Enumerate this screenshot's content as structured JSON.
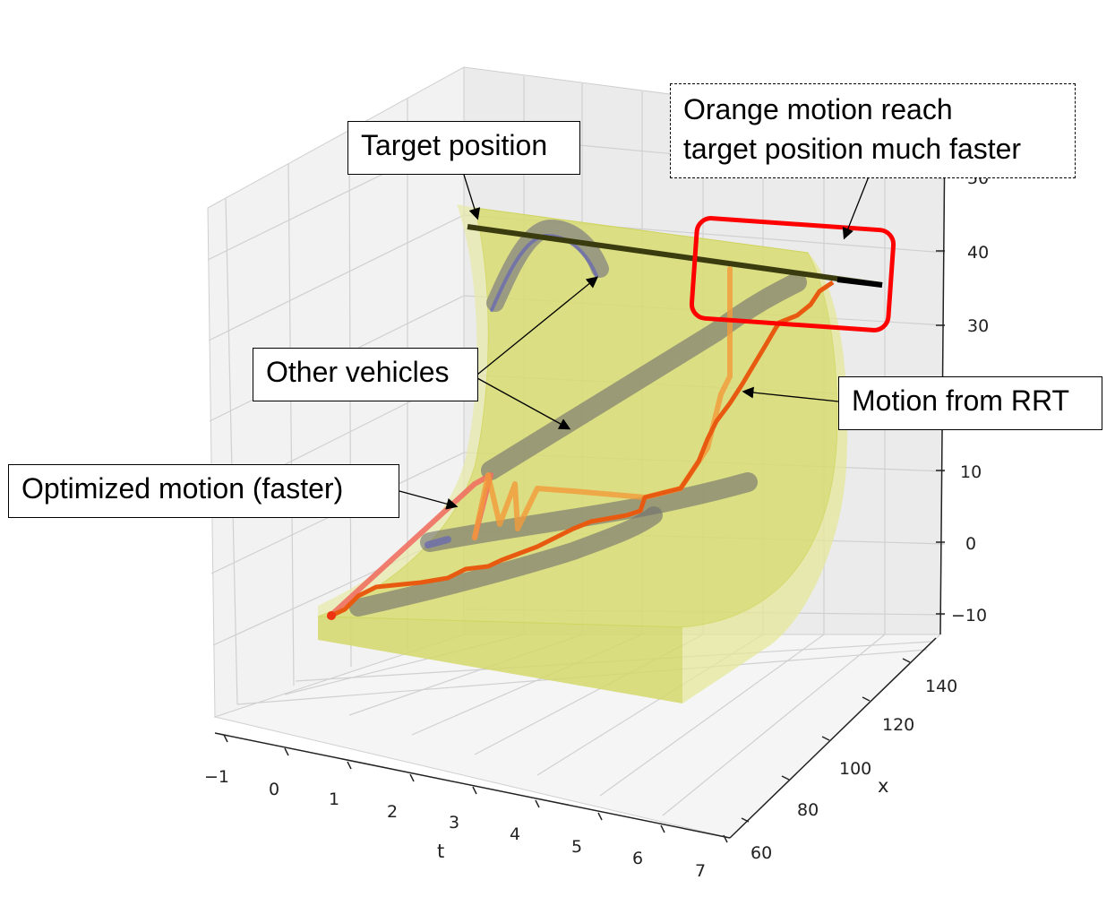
{
  "chart_data": {
    "type": "line",
    "projection": "3d",
    "title": "",
    "axes": {
      "t": {
        "label": "t",
        "ticks": [
          "−1",
          "0",
          "1",
          "2",
          "3",
          "4",
          "5",
          "6",
          "7"
        ],
        "range": [
          -1,
          7
        ]
      },
      "x": {
        "label": "x",
        "ticks": [
          "60",
          "80",
          "100",
          "120",
          "140"
        ],
        "range": [
          55,
          145
        ]
      },
      "y": {
        "label": "",
        "ticks": [
          "−10",
          "0",
          "10",
          "30",
          "40",
          "50"
        ],
        "range": [
          -15,
          50
        ]
      }
    },
    "grid": true,
    "series": [
      {
        "role": "target",
        "color": "#3b3b10",
        "t": [
          -1,
          7
        ],
        "x": [
          140,
          140
        ],
        "y": [
          36,
          36
        ]
      },
      {
        "role": "rrt",
        "color": "#e85a10",
        "t": [
          -1,
          -0.6,
          -0.2,
          0.3,
          0.8,
          1.3,
          1.8,
          2.3,
          2.8,
          3.3,
          3.8,
          4.3,
          4.8,
          5.2,
          5.6,
          5.9,
          6.2,
          6.5,
          6.8,
          7
        ],
        "x": [
          60,
          62,
          64,
          66,
          70,
          74,
          78,
          84,
          90,
          96,
          100,
          104,
          108,
          112,
          116,
          120,
          124,
          128,
          134,
          140
        ],
        "y": [
          -10,
          -8,
          -6,
          -5,
          -4,
          -2,
          0,
          2,
          4,
          6,
          8,
          10,
          12,
          16,
          20,
          24,
          28,
          32,
          34,
          36
        ]
      },
      {
        "role": "optimized",
        "color": "#f07060",
        "t": [
          -1,
          0,
          1,
          2,
          3,
          4,
          5,
          6,
          7
        ],
        "x": [
          60,
          70,
          80,
          90,
          100,
          110,
          120,
          130,
          140
        ],
        "y": [
          -10,
          -5,
          0,
          5,
          10,
          16,
          22,
          30,
          36
        ]
      },
      {
        "role": "vehicle",
        "color": "#7a7a7a",
        "t": [
          1,
          2,
          3,
          4,
          5,
          6,
          7
        ],
        "x": [
          72,
          78,
          84,
          90,
          96,
          102,
          108
        ],
        "y": [
          -6,
          -4,
          -2,
          0,
          2,
          4,
          6
        ]
      },
      {
        "role": "vehicle",
        "color": "#7a7a7a",
        "t": [
          1,
          2,
          3,
          4,
          5,
          6,
          7
        ],
        "x": [
          80,
          88,
          96,
          104,
          112,
          120,
          128
        ],
        "y": [
          0,
          4,
          8,
          12,
          18,
          26,
          34
        ]
      },
      {
        "role": "vehicle",
        "color": "#7a7a7a",
        "t": [
          1,
          2,
          3,
          4,
          5,
          6,
          7
        ],
        "x": [
          64,
          72,
          80,
          88,
          96,
          104,
          112
        ],
        "y": [
          -8,
          -6,
          -4,
          -2,
          0,
          2,
          4
        ]
      },
      {
        "role": "vehicle",
        "color": "#7a7a7a",
        "t": [
          0,
          1,
          2,
          3
        ],
        "x": [
          110,
          122,
          126,
          130
        ],
        "y": [
          28,
          36,
          40,
          38
        ]
      }
    ]
  },
  "annotations": {
    "target": "Target position",
    "orange_line1": "Orange motion reach",
    "orange_line2": "target position much faster",
    "other": "Other vehicles",
    "rrt": "Motion from RRT",
    "optimized": "Optimized motion (faster)"
  },
  "colors": {
    "highlight": "#ff0000",
    "surface": "#d8dc70",
    "rrt": "#e85a10",
    "optimized": "#f07060"
  }
}
